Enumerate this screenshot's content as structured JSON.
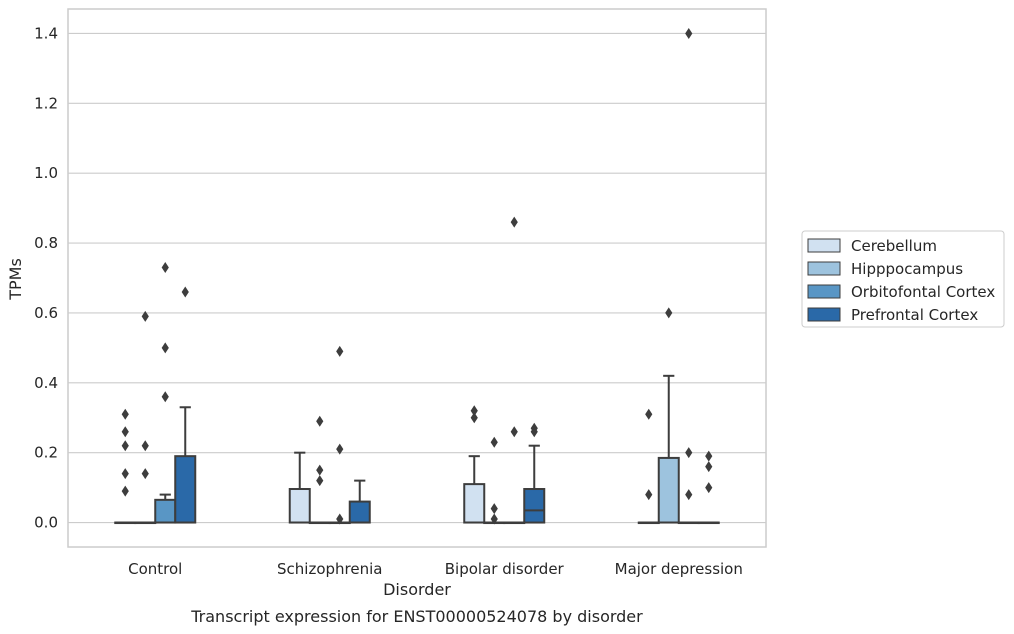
{
  "chart_data": {
    "type": "box",
    "xlabel": "Disorder",
    "ylabel": "TPMs",
    "caption": "Transcript expression for ENST00000524078 by disorder",
    "categories": [
      "Control",
      "Schizophrenia",
      "Bipolar disorder",
      "Major depression"
    ],
    "ylim": [
      -0.07,
      1.47
    ],
    "yticks": [
      "0.0",
      "0.2",
      "0.4",
      "0.6",
      "0.8",
      "1.0",
      "1.2",
      "1.4"
    ],
    "grid": "horizontal",
    "legend_position": "right",
    "series": [
      {
        "name": "Cerebellum",
        "color": "#d1e1f1",
        "boxes": [
          {
            "q1": 0,
            "median": 0,
            "q3": 0,
            "whisker_low": 0,
            "whisker_high": 0,
            "outliers": [
              0.09,
              0.14,
              0.22,
              0.26,
              0.31
            ]
          },
          {
            "q1": 0,
            "median": 0,
            "q3": 0.096,
            "whisker_low": 0,
            "whisker_high": 0.2,
            "outliers": []
          },
          {
            "q1": 0,
            "median": 0,
            "q3": 0.11,
            "whisker_low": 0,
            "whisker_high": 0.19,
            "outliers": [
              0.3,
              0.32
            ]
          },
          {
            "q1": 0,
            "median": 0,
            "q3": 0,
            "whisker_low": 0,
            "whisker_high": 0,
            "outliers": [
              0.08,
              0.31
            ]
          }
        ]
      },
      {
        "name": "Hipppocampus",
        "color": "#9dc3de",
        "boxes": [
          {
            "q1": 0,
            "median": 0,
            "q3": 0,
            "whisker_low": 0,
            "whisker_high": 0,
            "outliers": [
              0.14,
              0.22,
              0.59
            ]
          },
          {
            "q1": 0,
            "median": 0,
            "q3": 0,
            "whisker_low": 0,
            "whisker_high": 0,
            "outliers": [
              0.12,
              0.15,
              0.29
            ]
          },
          {
            "q1": 0,
            "median": 0,
            "q3": 0,
            "whisker_low": 0,
            "whisker_high": 0,
            "outliers": [
              0.01,
              0.04,
              0.23
            ]
          },
          {
            "q1": 0,
            "median": 0,
            "q3": 0.185,
            "whisker_low": 0,
            "whisker_high": 0.42,
            "outliers": [
              0.6
            ]
          }
        ]
      },
      {
        "name": "Orbitofontal Cortex",
        "color": "#5996c5",
        "boxes": [
          {
            "q1": 0,
            "median": 0,
            "q3": 0.065,
            "whisker_low": 0,
            "whisker_high": 0.08,
            "outliers": [
              0.36,
              0.5,
              0.73
            ]
          },
          {
            "q1": 0,
            "median": 0,
            "q3": 0,
            "whisker_low": 0,
            "whisker_high": 0,
            "outliers": [
              0.01,
              0.21,
              0.49
            ]
          },
          {
            "q1": 0,
            "median": 0,
            "q3": 0,
            "whisker_low": 0,
            "whisker_high": 0,
            "outliers": [
              0.26,
              0.86
            ]
          },
          {
            "q1": 0,
            "median": 0,
            "q3": 0,
            "whisker_low": 0,
            "whisker_high": 0,
            "outliers": [
              0.08,
              0.2,
              1.4
            ]
          }
        ]
      },
      {
        "name": "Prefrontal Cortex",
        "color": "#2a69a8",
        "boxes": [
          {
            "q1": 0,
            "median": 0,
            "q3": 0.19,
            "whisker_low": 0,
            "whisker_high": 0.33,
            "outliers": [
              0.66
            ]
          },
          {
            "q1": 0,
            "median": 0,
            "q3": 0.06,
            "whisker_low": 0,
            "whisker_high": 0.12,
            "outliers": []
          },
          {
            "q1": 0,
            "median": 0.035,
            "q3": 0.096,
            "whisker_low": 0,
            "whisker_high": 0.22,
            "outliers": [
              0.26,
              0.27
            ]
          },
          {
            "q1": 0,
            "median": 0,
            "q3": 0,
            "whisker_low": 0,
            "whisker_high": 0,
            "outliers": [
              0.1,
              0.16,
              0.19
            ]
          }
        ]
      }
    ]
  }
}
